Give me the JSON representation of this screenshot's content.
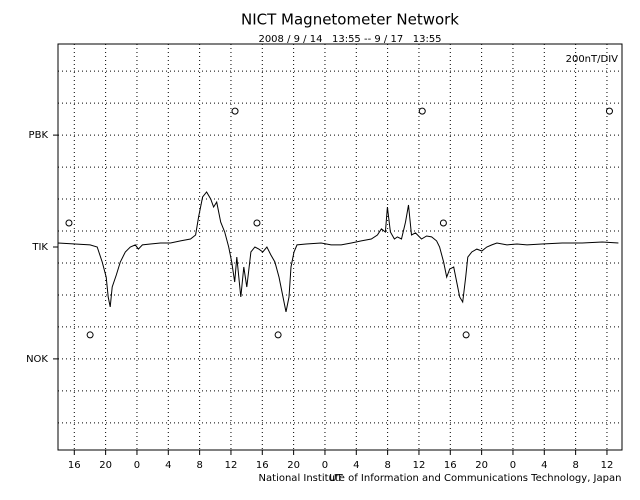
{
  "chart_data": {
    "type": "line",
    "title": "NICT Magnetometer Network",
    "subtitle": "2008 / 9 / 14   13:55 -- 9 / 17   13:55",
    "scale_note": "200nT/DIV",
    "x_label": "UT",
    "footer": "National Institute of Information and Communications Technology, Japan",
    "xlim": [
      0,
      72
    ],
    "xticks": [
      {
        "value": 2.08,
        "label": "16"
      },
      {
        "value": 6.08,
        "label": "20"
      },
      {
        "value": 10.08,
        "label": "0"
      },
      {
        "value": 14.08,
        "label": "4"
      },
      {
        "value": 18.08,
        "label": "8"
      },
      {
        "value": 22.08,
        "label": "12"
      },
      {
        "value": 26.08,
        "label": "16"
      },
      {
        "value": 30.08,
        "label": "20"
      },
      {
        "value": 34.08,
        "label": "0"
      },
      {
        "value": 38.08,
        "label": "4"
      },
      {
        "value": 42.08,
        "label": "8"
      },
      {
        "value": 46.08,
        "label": "12"
      },
      {
        "value": 50.08,
        "label": "16"
      },
      {
        "value": 54.08,
        "label": "20"
      },
      {
        "value": 58.08,
        "label": "0"
      },
      {
        "value": 62.08,
        "label": "4"
      },
      {
        "value": 66.08,
        "label": "8"
      },
      {
        "value": 70.08,
        "label": "12"
      }
    ],
    "ylim": [
      -1270,
      1270
    ],
    "yticks": [
      {
        "value": 700,
        "label": "PBK"
      },
      {
        "value": 0,
        "label": "TIK"
      },
      {
        "value": -700,
        "label": "NOK"
      }
    ],
    "ygrid": [
      -1100,
      -900,
      -700,
      -500,
      -300,
      -100,
      100,
      300,
      500,
      700,
      900,
      1100
    ],
    "grid": true,
    "series": [
      {
        "color": "#000000",
        "x": [
          0,
          2.18,
          4.1,
          5.0,
          5.64,
          6.15,
          6.41,
          6.67,
          6.92,
          7.44,
          7.95,
          8.59,
          9.23,
          9.87,
          10.26,
          10.77,
          11.79,
          13.08,
          14.36,
          15.64,
          16.92,
          17.56,
          17.95,
          18.46,
          18.97,
          19.49,
          19.87,
          20.26,
          20.77,
          21.28,
          21.79,
          22.18,
          22.56,
          22.82,
          23.33,
          23.72,
          24.1,
          24.62,
          25.13,
          25.64,
          26.15,
          26.67,
          27.18,
          27.69,
          28.21,
          28.72,
          29.1,
          29.49,
          29.74,
          30.13,
          30.51,
          31.67,
          33.59,
          34.87,
          36.15,
          37.44,
          38.72,
          40.0,
          40.77,
          41.28,
          41.79,
          42.05,
          42.44,
          42.95,
          43.33,
          43.85,
          44.36,
          44.74,
          45.13,
          45.64,
          46.41,
          47.05,
          47.69,
          48.33,
          48.72,
          49.23,
          49.62,
          50.0,
          50.51,
          50.9,
          51.28,
          51.67,
          52.05,
          52.31,
          52.82,
          53.46,
          54.1,
          54.74,
          55.38,
          56.03,
          57.31,
          58.59,
          59.87,
          61.79,
          64.36,
          66.92,
          69.49,
          71.54
        ],
        "values": [
          25,
          19,
          13,
          0,
          -94,
          -188,
          -313,
          -375,
          -250,
          -175,
          -94,
          -31,
          0,
          13,
          -13,
          13,
          19,
          25,
          25,
          38,
          50,
          75,
          188,
          313,
          344,
          300,
          250,
          281,
          156,
          94,
          0,
          -94,
          -219,
          -63,
          -313,
          -125,
          -250,
          -31,
          0,
          -13,
          -31,
          0,
          -50,
          -94,
          -188,
          -313,
          -406,
          -313,
          -125,
          -31,
          13,
          19,
          25,
          13,
          13,
          25,
          38,
          50,
          75,
          113,
          94,
          250,
          94,
          50,
          63,
          50,
          156,
          263,
          75,
          88,
          50,
          69,
          63,
          38,
          0,
          -94,
          -188,
          -138,
          -125,
          -219,
          -313,
          -344,
          -188,
          -63,
          -31,
          -13,
          -25,
          0,
          13,
          25,
          13,
          19,
          13,
          19,
          25,
          25,
          31,
          25
        ]
      }
    ],
    "markers": {
      "x": [
        22.6,
        46.5,
        70.4,
        1.4,
        25.4,
        49.2,
        4.1,
        28.1,
        52.1
      ],
      "values": [
        850,
        850,
        850,
        150,
        150,
        150,
        -550,
        -550,
        -550
      ]
    }
  }
}
